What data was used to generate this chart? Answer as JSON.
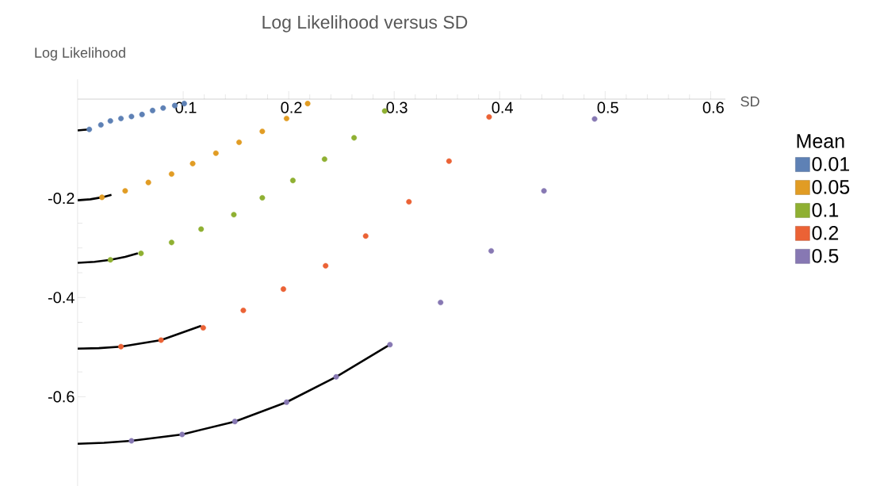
{
  "chart_data": {
    "type": "scatter",
    "title": "Log Likelihood versus SD",
    "xlabel": "SD",
    "ylabel": "Log Likelihood",
    "legend_title": "Mean",
    "legend": "right",
    "xlim": [
      0,
      0.614
    ],
    "ylim": [
      -0.78,
      0.04
    ],
    "xticks": [
      0.1,
      0.2,
      0.3,
      0.4,
      0.5,
      0.6
    ],
    "yticks": [
      -0.6,
      -0.4,
      -0.2
    ],
    "series": [
      {
        "name": "0.01",
        "marker": "circle",
        "color": "#5e81b5",
        "x": [
          0.011,
          0.022,
          0.031,
          0.041,
          0.051,
          0.061,
          0.071,
          0.081,
          0.092,
          0.101
        ],
        "values": [
          -0.061,
          -0.052,
          -0.044,
          -0.039,
          -0.035,
          -0.031,
          -0.023,
          -0.018,
          -0.013,
          -0.009
        ]
      },
      {
        "name": "0.05",
        "marker": "circle",
        "color": "#e19c24",
        "x": [
          0.023,
          0.045,
          0.067,
          0.089,
          0.109,
          0.131,
          0.153,
          0.175,
          0.198,
          0.218
        ],
        "values": [
          -0.198,
          -0.185,
          -0.168,
          -0.151,
          -0.13,
          -0.109,
          -0.087,
          -0.065,
          -0.039,
          -0.009
        ]
      },
      {
        "name": "0.1",
        "marker": "circle",
        "color": "#8fb032",
        "x": [
          0.031,
          0.06,
          0.089,
          0.117,
          0.148,
          0.175,
          0.204,
          0.234,
          0.262,
          0.291
        ],
        "values": [
          -0.324,
          -0.311,
          -0.289,
          -0.262,
          -0.233,
          -0.199,
          -0.164,
          -0.121,
          -0.078,
          -0.024
        ]
      },
      {
        "name": "0.2",
        "marker": "circle",
        "color": "#eb6235",
        "x": [
          0.041,
          0.079,
          0.119,
          0.157,
          0.195,
          0.235,
          0.273,
          0.314,
          0.352,
          0.39
        ],
        "values": [
          -0.499,
          -0.486,
          -0.461,
          -0.426,
          -0.383,
          -0.336,
          -0.276,
          -0.207,
          -0.125,
          -0.036
        ]
      },
      {
        "name": "0.5",
        "marker": "circle",
        "color": "#8778b3",
        "x": [
          0.051,
          0.099,
          0.149,
          0.198,
          0.245,
          0.296,
          0.344,
          0.392,
          0.442,
          0.49
        ],
        "values": [
          -0.689,
          -0.676,
          -0.65,
          -0.611,
          -0.56,
          -0.495,
          -0.41,
          -0.306,
          -0.185,
          -0.04
        ]
      },
      {
        "type": "line",
        "marker": "none",
        "color": "#000000",
        "x": [
          0,
          0.025,
          0.051,
          0.099,
          0.149,
          0.198,
          0.245,
          0.296
        ],
        "values": [
          -0.695,
          -0.693,
          -0.689,
          -0.676,
          -0.65,
          -0.611,
          -0.56,
          -0.495
        ]
      },
      {
        "type": "line",
        "marker": "none",
        "color": "#000000",
        "x": [
          0,
          0.012,
          0.023,
          0.032
        ],
        "values": [
          -0.204,
          -0.202,
          -0.198,
          -0.193
        ]
      },
      {
        "type": "line",
        "marker": "none",
        "color": "#000000",
        "x": [
          0,
          0.016,
          0.031,
          0.045,
          0.057
        ],
        "values": [
          -0.33,
          -0.328,
          -0.324,
          -0.318,
          -0.311
        ]
      },
      {
        "type": "line",
        "marker": "none",
        "color": "#000000",
        "x": [
          0,
          0.02,
          0.041,
          0.079,
          0.117
        ],
        "values": [
          -0.503,
          -0.502,
          -0.499,
          -0.486,
          -0.457
        ]
      },
      {
        "type": "line",
        "marker": "none",
        "color": "#000000",
        "x": [
          0,
          0.006,
          0.011
        ],
        "values": [
          -0.063,
          -0.062,
          -0.061
        ]
      }
    ]
  }
}
